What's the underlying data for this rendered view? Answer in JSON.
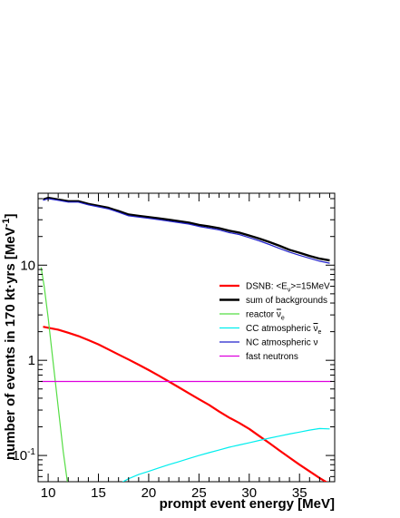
{
  "chart_data": {
    "type": "line",
    "title": "",
    "xlabel": "prompt event energy [MeV]",
    "ylabel_main": "number of events in 170 kt·yrs [MeV",
    "ylabel_sup": "-1",
    "ylabel_close": "]",
    "xlim": [
      9,
      38.5
    ],
    "ylim": [
      0.053,
      57
    ],
    "y_scale": "log",
    "grid": false,
    "legend_position": "right",
    "x_ticks": [
      {
        "value": 10,
        "label": "10"
      },
      {
        "value": 15,
        "label": "15"
      },
      {
        "value": 20,
        "label": "20"
      },
      {
        "value": 25,
        "label": "25"
      },
      {
        "value": 30,
        "label": "30"
      },
      {
        "value": 35,
        "label": "35"
      }
    ],
    "y_ticks": [
      {
        "value": 0.1,
        "base": "10",
        "exp": "-1"
      },
      {
        "value": 1,
        "base": "1",
        "exp": ""
      },
      {
        "value": 10,
        "base": "10",
        "exp": ""
      }
    ],
    "series": [
      {
        "name": "DSNB: <E",
        "name_sub": "ν",
        "name_tail": ">=15MeV",
        "color": "#ff0000",
        "width": 2.2,
        "x": [
          9.5,
          10,
          11,
          12,
          13,
          14,
          15,
          16,
          17,
          18,
          19,
          20,
          21,
          22,
          23,
          24,
          25,
          26,
          27,
          28,
          29,
          30,
          31,
          32,
          33,
          34,
          35,
          36,
          37,
          38
        ],
        "y": [
          2.25,
          2.2,
          2.1,
          1.95,
          1.8,
          1.63,
          1.47,
          1.3,
          1.15,
          1.02,
          0.9,
          0.79,
          0.69,
          0.6,
          0.52,
          0.45,
          0.39,
          0.34,
          0.29,
          0.25,
          0.22,
          0.19,
          0.16,
          0.135,
          0.113,
          0.095,
          0.08,
          0.068,
          0.058,
          0.05
        ]
      },
      {
        "name": "sum of backgrounds",
        "color": "#000000",
        "width": 2.4,
        "x": [
          9.5,
          10,
          11,
          12,
          13,
          14,
          15,
          16,
          17,
          18,
          19,
          20,
          21,
          22,
          23,
          24,
          25,
          26,
          27,
          28,
          29,
          30,
          31,
          32,
          33,
          34,
          35,
          36,
          37,
          38
        ],
        "y": [
          49,
          51,
          49,
          47,
          47,
          44,
          42,
          40,
          37,
          34,
          33,
          32,
          31,
          30,
          29,
          28,
          26.5,
          25.5,
          24.5,
          23,
          22,
          20.5,
          19,
          17.5,
          16,
          14.5,
          13.5,
          12.5,
          11.7,
          11.2
        ]
      },
      {
        "name": "reactor ",
        "name_over": "ν",
        "name_sub": "e",
        "color": "#55dd44",
        "width": 1.2,
        "x": [
          9.3,
          9.6,
          10,
          10.5,
          11,
          11.5,
          12
        ],
        "y": [
          9.5,
          6.0,
          2.8,
          0.95,
          0.32,
          0.11,
          0.045
        ]
      },
      {
        "name": "CC atmospheric ",
        "name_over": "ν",
        "name_sub": "e",
        "color": "#00eeee",
        "width": 1.2,
        "x": [
          17,
          18,
          19,
          20,
          21,
          22,
          23,
          24,
          25,
          26,
          27,
          28,
          29,
          30,
          31,
          32,
          33,
          34,
          35,
          36,
          37,
          38
        ],
        "y": [
          0.05,
          0.057,
          0.063,
          0.068,
          0.074,
          0.08,
          0.086,
          0.093,
          0.1,
          0.107,
          0.114,
          0.122,
          0.129,
          0.136,
          0.144,
          0.152,
          0.16,
          0.168,
          0.176,
          0.185,
          0.192,
          0.19
        ]
      },
      {
        "name": "NC atmospheric ν",
        "color": "#2222cc",
        "width": 1.2,
        "x": [
          9.5,
          10,
          11,
          12,
          13,
          14,
          15,
          16,
          17,
          18,
          19,
          20,
          21,
          22,
          23,
          24,
          25,
          26,
          27,
          28,
          29,
          30,
          31,
          32,
          33,
          34,
          35,
          36,
          37,
          38
        ],
        "y": [
          48,
          50,
          48,
          46,
          46,
          43,
          41,
          39,
          36,
          33,
          32,
          31,
          30,
          29,
          28,
          27,
          25.5,
          24.5,
          23.5,
          22,
          21,
          19.5,
          18,
          16.5,
          15,
          13.7,
          12.7,
          11.8,
          11,
          10.5
        ]
      },
      {
        "name": "fast neutrons",
        "color": "#dd00dd",
        "width": 1.2,
        "x": [
          9.3,
          38.2
        ],
        "y": [
          0.6,
          0.6
        ]
      }
    ]
  }
}
